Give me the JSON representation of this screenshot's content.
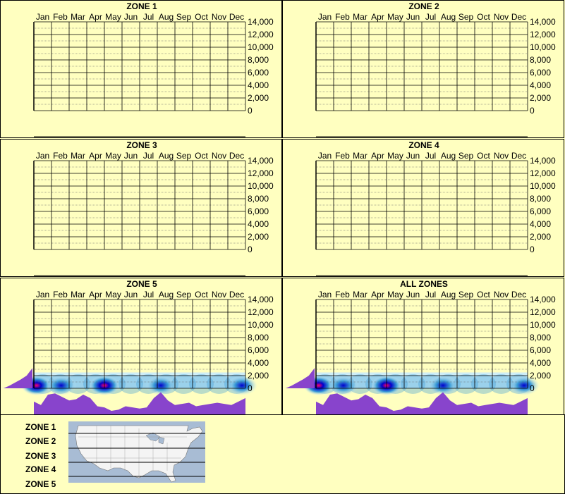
{
  "months": [
    "Jan",
    "Feb",
    "Mar",
    "Apr",
    "May",
    "Jun",
    "Jul",
    "Aug",
    "Sep",
    "Oct",
    "Nov",
    "Dec"
  ],
  "y_ticks": [
    "14,000",
    "12,000",
    "10,000",
    "8,000",
    "6,000",
    "4,000",
    "2,000",
    "0"
  ],
  "colors": {
    "background": "#ffffc0",
    "violet": "#8844cc",
    "heat_low": "#cfeef6",
    "heat_mid": "#3a9bd6",
    "heat_high": "#0000cc",
    "heat_peak": "#ff0066",
    "map_water": "#a8bcd4",
    "map_land": "#f4f4f4"
  },
  "chart_data": [
    {
      "type": "heatmap",
      "title": "ZONE 1",
      "categories": [
        "Jan",
        "Feb",
        "Mar",
        "Apr",
        "May",
        "Jun",
        "Jul",
        "Aug",
        "Sep",
        "Oct",
        "Nov",
        "Dec"
      ],
      "ylim": [
        0,
        14000
      ],
      "has_data": false
    },
    {
      "type": "heatmap",
      "title": "ZONE 2",
      "categories": [
        "Jan",
        "Feb",
        "Mar",
        "Apr",
        "May",
        "Jun",
        "Jul",
        "Aug",
        "Sep",
        "Oct",
        "Nov",
        "Dec"
      ],
      "ylim": [
        0,
        14000
      ],
      "has_data": false
    },
    {
      "type": "heatmap",
      "title": "ZONE 3",
      "categories": [
        "Jan",
        "Feb",
        "Mar",
        "Apr",
        "May",
        "Jun",
        "Jul",
        "Aug",
        "Sep",
        "Oct",
        "Nov",
        "Dec"
      ],
      "ylim": [
        0,
        14000
      ],
      "has_data": false
    },
    {
      "type": "heatmap",
      "title": "ZONE 4",
      "categories": [
        "Jan",
        "Feb",
        "Mar",
        "Apr",
        "May",
        "Jun",
        "Jul",
        "Aug",
        "Sep",
        "Oct",
        "Nov",
        "Dec"
      ],
      "ylim": [
        0,
        14000
      ],
      "has_data": false
    },
    {
      "type": "heatmap",
      "title": "ZONE 5",
      "categories": [
        "Jan",
        "Feb",
        "Mar",
        "Apr",
        "May",
        "Jun",
        "Jul",
        "Aug",
        "Sep",
        "Oct",
        "Nov",
        "Dec"
      ],
      "ylim": [
        0,
        14000
      ],
      "has_data": true,
      "elevation_profile": [
        0,
        400,
        900,
        1400,
        2000,
        3200
      ],
      "monthly_profile": [
        0.55,
        0.4,
        0.85,
        0.9,
        0.75,
        0.6,
        0.65,
        0.85,
        0.7,
        0.35,
        0.3,
        0.15,
        0.2,
        0.35,
        0.3,
        0.25,
        0.3,
        0.7,
        0.95,
        0.6,
        0.4,
        0.45,
        0.5,
        0.35,
        0.4,
        0.45,
        0.5,
        0.45,
        0.4,
        0.55,
        0.7
      ],
      "hotspots": [
        {
          "month": 0.15,
          "elevation": 0,
          "level": "peak"
        },
        {
          "month": 1.55,
          "elevation": 0,
          "level": "high"
        },
        {
          "month": 4.0,
          "elevation": 0,
          "level": "peak"
        },
        {
          "month": 7.2,
          "elevation": 0,
          "level": "high"
        },
        {
          "month": 11.8,
          "elevation": 0,
          "level": "high"
        }
      ]
    },
    {
      "type": "heatmap",
      "title": "ALL ZONES",
      "categories": [
        "Jan",
        "Feb",
        "Mar",
        "Apr",
        "May",
        "Jun",
        "Jul",
        "Aug",
        "Sep",
        "Oct",
        "Nov",
        "Dec"
      ],
      "ylim": [
        0,
        14000
      ],
      "has_data": true,
      "elevation_profile": [
        0,
        400,
        900,
        1400,
        2000,
        3200
      ],
      "monthly_profile": [
        0.55,
        0.4,
        0.85,
        0.9,
        0.75,
        0.6,
        0.65,
        0.85,
        0.7,
        0.35,
        0.3,
        0.15,
        0.2,
        0.35,
        0.3,
        0.25,
        0.3,
        0.7,
        0.95,
        0.6,
        0.4,
        0.45,
        0.5,
        0.35,
        0.4,
        0.45,
        0.5,
        0.45,
        0.4,
        0.55,
        0.7
      ],
      "hotspots": [
        {
          "month": 0.15,
          "elevation": 0,
          "level": "peak"
        },
        {
          "month": 1.55,
          "elevation": 0,
          "level": "high"
        },
        {
          "month": 4.0,
          "elevation": 0,
          "level": "peak"
        },
        {
          "month": 7.2,
          "elevation": 0,
          "level": "high"
        },
        {
          "month": 11.8,
          "elevation": 0,
          "level": "high"
        }
      ]
    }
  ],
  "zone_legend": [
    "ZONE 1",
    "ZONE 2",
    "ZONE 3",
    "ZONE 4",
    "ZONE 5"
  ]
}
